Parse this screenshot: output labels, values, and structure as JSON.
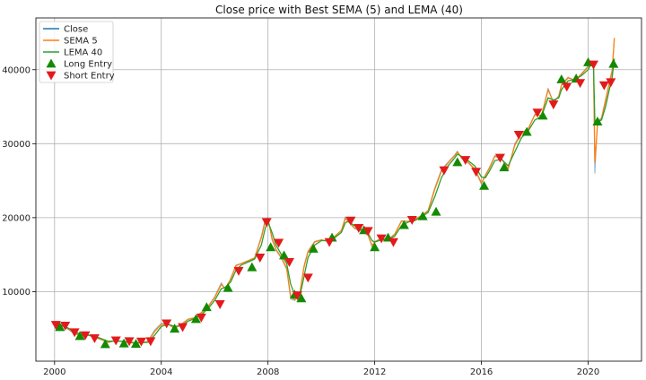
{
  "chart_data": {
    "type": "line",
    "title": "Close price with Best SEMA (5) and LEMA (40)",
    "xlabel": "",
    "ylabel": "",
    "xlim": [
      1999.3,
      2022.0
    ],
    "ylim": [
      600,
      47000
    ],
    "grid": true,
    "legend_position": "top-left",
    "x_ticks": [
      2000,
      2004,
      2008,
      2012,
      2016,
      2020
    ],
    "x_tick_labels": [
      "2000",
      "2004",
      "2008",
      "2012",
      "2016",
      "2020"
    ],
    "y_ticks": [
      10000,
      20000,
      30000,
      40000
    ],
    "y_tick_labels": [
      "10000",
      "20000",
      "30000",
      "40000"
    ],
    "series": [
      {
        "name": "Close",
        "color": "#1f77b4",
        "x": [
          2000.0,
          2000.25,
          2000.5,
          2000.75,
          2001.0,
          2001.25,
          2001.5,
          2001.75,
          2002.0,
          2002.25,
          2002.5,
          2002.75,
          2003.0,
          2003.25,
          2003.5,
          2003.75,
          2004.0,
          2004.25,
          2004.5,
          2004.75,
          2005.0,
          2005.25,
          2005.5,
          2005.75,
          2006.0,
          2006.25,
          2006.4,
          2006.6,
          2006.8,
          2007.0,
          2007.25,
          2007.5,
          2007.75,
          2007.9,
          2008.0,
          2008.15,
          2008.3,
          2008.5,
          2008.7,
          2008.85,
          2009.0,
          2009.1,
          2009.2,
          2009.35,
          2009.5,
          2009.75,
          2010.0,
          2010.25,
          2010.5,
          2010.75,
          2010.9,
          2011.0,
          2011.25,
          2011.5,
          2011.75,
          2011.9,
          2012.0,
          2012.25,
          2012.5,
          2012.75,
          2013.0,
          2013.25,
          2013.5,
          2013.75,
          2014.0,
          2014.25,
          2014.5,
          2014.75,
          2015.0,
          2015.1,
          2015.25,
          2015.5,
          2015.75,
          2016.0,
          2016.15,
          2016.3,
          2016.5,
          2016.75,
          2017.0,
          2017.25,
          2017.5,
          2017.75,
          2018.0,
          2018.25,
          2018.5,
          2018.7,
          2018.9,
          2019.0,
          2019.25,
          2019.5,
          2019.75,
          2020.0,
          2020.1,
          2020.2,
          2020.25,
          2020.35,
          2020.5,
          2020.65,
          2020.8,
          2020.9,
          2020.98
        ],
        "values": [
          5400,
          5600,
          4900,
          4300,
          4000,
          4200,
          3800,
          3500,
          3100,
          3400,
          3300,
          3100,
          3050,
          3100,
          3300,
          4800,
          5700,
          5600,
          5000,
          5600,
          6300,
          6500,
          7200,
          8000,
          9300,
          11200,
          10300,
          11800,
          13600,
          13800,
          14200,
          14600,
          17500,
          19800,
          20000,
          17000,
          15600,
          14500,
          13000,
          9000,
          8800,
          9200,
          10000,
          13500,
          15500,
          16800,
          17000,
          16800,
          17500,
          18300,
          20100,
          19500,
          18500,
          18200,
          17600,
          16000,
          16800,
          17200,
          17000,
          17800,
          19600,
          19500,
          19800,
          20300,
          21000,
          24000,
          26500,
          27500,
          28500,
          29000,
          28000,
          27400,
          26500,
          24500,
          25800,
          26800,
          28400,
          28000,
          26500,
          30000,
          31500,
          32000,
          34000,
          33800,
          37500,
          35500,
          36500,
          38000,
          39000,
          38500,
          39500,
          40500,
          41200,
          40800,
          26000,
          33000,
          33500,
          36000,
          38500,
          40000,
          44000
        ]
      },
      {
        "name": "SEMA 5",
        "color": "#ff7f0e",
        "x": [
          2000.0,
          2000.25,
          2000.5,
          2000.75,
          2001.0,
          2001.25,
          2001.5,
          2001.75,
          2002.0,
          2002.25,
          2002.5,
          2002.75,
          2003.0,
          2003.25,
          2003.5,
          2003.75,
          2004.0,
          2004.25,
          2004.5,
          2004.75,
          2005.0,
          2005.25,
          2005.5,
          2005.75,
          2006.0,
          2006.25,
          2006.4,
          2006.6,
          2006.8,
          2007.0,
          2007.25,
          2007.5,
          2007.75,
          2007.9,
          2008.0,
          2008.15,
          2008.3,
          2008.5,
          2008.7,
          2008.85,
          2009.0,
          2009.1,
          2009.2,
          2009.35,
          2009.5,
          2009.75,
          2010.0,
          2010.25,
          2010.5,
          2010.75,
          2010.9,
          2011.0,
          2011.25,
          2011.5,
          2011.75,
          2011.9,
          2012.0,
          2012.25,
          2012.5,
          2012.75,
          2013.0,
          2013.25,
          2013.5,
          2013.75,
          2014.0,
          2014.25,
          2014.5,
          2014.75,
          2015.0,
          2015.1,
          2015.25,
          2015.5,
          2015.75,
          2016.0,
          2016.15,
          2016.3,
          2016.5,
          2016.75,
          2017.0,
          2017.25,
          2017.5,
          2017.75,
          2018.0,
          2018.25,
          2018.5,
          2018.7,
          2018.9,
          2019.0,
          2019.25,
          2019.5,
          2019.75,
          2020.0,
          2020.1,
          2020.2,
          2020.25,
          2020.35,
          2020.5,
          2020.65,
          2020.8,
          2020.9,
          2020.98
        ],
        "values": [
          5300,
          5500,
          5000,
          4400,
          4050,
          4150,
          3850,
          3550,
          3150,
          3350,
          3300,
          3150,
          3050,
          3100,
          3250,
          4600,
          5600,
          5600,
          5050,
          5550,
          6250,
          6450,
          7150,
          7950,
          9200,
          11000,
          10400,
          11700,
          13500,
          13800,
          14150,
          14550,
          17300,
          19600,
          19900,
          17200,
          15700,
          14600,
          13200,
          9300,
          8900,
          9200,
          9900,
          13300,
          15400,
          16700,
          17000,
          16800,
          17450,
          18250,
          19900,
          19500,
          18600,
          18250,
          17650,
          16200,
          16750,
          17150,
          17000,
          17750,
          19500,
          19500,
          19750,
          20250,
          20900,
          23800,
          26300,
          27400,
          28400,
          28900,
          28100,
          27450,
          26600,
          24700,
          25700,
          26700,
          28300,
          28000,
          26600,
          29800,
          31400,
          31950,
          33900,
          33800,
          37300,
          35600,
          36400,
          37900,
          38900,
          38600,
          39400,
          40400,
          41000,
          40500,
          27500,
          32500,
          33400,
          35800,
          38300,
          39800,
          44300
        ]
      },
      {
        "name": "LEMA 40",
        "color": "#2ca02c",
        "x": [
          2000.0,
          2000.25,
          2000.5,
          2000.75,
          2001.0,
          2001.25,
          2001.5,
          2001.75,
          2002.0,
          2002.25,
          2002.5,
          2002.75,
          2003.0,
          2003.25,
          2003.5,
          2003.75,
          2004.0,
          2004.25,
          2004.5,
          2004.75,
          2005.0,
          2005.25,
          2005.5,
          2005.75,
          2006.0,
          2006.25,
          2006.4,
          2006.6,
          2006.8,
          2007.0,
          2007.25,
          2007.5,
          2007.75,
          2007.9,
          2008.0,
          2008.15,
          2008.3,
          2008.5,
          2008.7,
          2008.85,
          2009.0,
          2009.1,
          2009.2,
          2009.35,
          2009.5,
          2009.75,
          2010.0,
          2010.25,
          2010.5,
          2010.75,
          2010.9,
          2011.0,
          2011.25,
          2011.5,
          2011.75,
          2011.9,
          2012.0,
          2012.25,
          2012.5,
          2012.75,
          2013.0,
          2013.25,
          2013.5,
          2013.75,
          2014.0,
          2014.25,
          2014.5,
          2014.75,
          2015.0,
          2015.1,
          2015.25,
          2015.5,
          2015.75,
          2016.0,
          2016.15,
          2016.3,
          2016.5,
          2016.75,
          2017.0,
          2017.25,
          2017.5,
          2017.75,
          2018.0,
          2018.25,
          2018.5,
          2018.7,
          2018.9,
          2019.0,
          2019.25,
          2019.5,
          2019.75,
          2020.0,
          2020.1,
          2020.2,
          2020.25,
          2020.35,
          2020.5,
          2020.65,
          2020.8,
          2020.9,
          2020.98
        ],
        "values": [
          5200,
          5400,
          5100,
          4600,
          4200,
          4100,
          3950,
          3650,
          3300,
          3300,
          3300,
          3200,
          3100,
          3100,
          3150,
          4100,
          5300,
          5600,
          5300,
          5400,
          6000,
          6350,
          6900,
          7700,
          8800,
          10400,
          10600,
          11300,
          12900,
          13600,
          14000,
          14400,
          16300,
          18600,
          19400,
          18000,
          16300,
          15000,
          13800,
          11000,
          9600,
          9300,
          9500,
          12000,
          14600,
          16300,
          16900,
          16900,
          17300,
          18000,
          19300,
          19500,
          18900,
          18400,
          17900,
          16900,
          16700,
          17000,
          17000,
          17500,
          18900,
          19400,
          19600,
          20100,
          20700,
          22800,
          25400,
          27000,
          28100,
          28600,
          28300,
          27700,
          27000,
          25500,
          25400,
          26300,
          27700,
          27900,
          27000,
          28900,
          30800,
          31700,
          33200,
          33700,
          36200,
          35900,
          36200,
          37300,
          38500,
          38700,
          39200,
          40000,
          40700,
          40600,
          33000,
          33000,
          33200,
          35000,
          37400,
          39000,
          41500
        ]
      }
    ],
    "entries": [
      {
        "name": "Long Entry",
        "color": "#138a00",
        "x": [
          2000.2,
          2000.95,
          2001.9,
          2002.6,
          2003.05,
          2004.5,
          2005.3,
          2005.7,
          2006.5,
          2007.4,
          2008.1,
          2008.6,
          2009.0,
          2009.25,
          2009.7,
          2010.4,
          2011.6,
          2012.0,
          2012.5,
          2013.1,
          2013.8,
          2014.3,
          2015.1,
          2016.1,
          2016.85,
          2017.7,
          2018.3,
          2019.0,
          2019.55,
          2020.0,
          2020.35,
          2020.95
        ],
        "values": [
          5200,
          4000,
          2900,
          3000,
          2950,
          5000,
          6300,
          7900,
          10500,
          13300,
          16000,
          14900,
          9600,
          9100,
          15800,
          17300,
          18300,
          16000,
          17300,
          19000,
          20200,
          20800,
          27500,
          24300,
          26800,
          31600,
          33800,
          38700,
          38800,
          41000,
          33000,
          40800
        ]
      },
      {
        "name": "Short Entry",
        "color": "#e31a1c",
        "x": [
          2000.05,
          2000.4,
          2000.75,
          2001.15,
          2001.5,
          2002.3,
          2002.8,
          2003.25,
          2003.6,
          2004.2,
          2004.8,
          2005.5,
          2006.2,
          2006.9,
          2007.7,
          2007.95,
          2008.4,
          2008.8,
          2009.1,
          2009.5,
          2010.3,
          2011.1,
          2011.4,
          2011.75,
          2012.25,
          2012.7,
          2013.4,
          2014.6,
          2015.4,
          2015.8,
          2016.7,
          2017.4,
          2018.1,
          2018.7,
          2019.2,
          2019.7,
          2020.2,
          2020.6,
          2020.85
        ],
        "values": [
          5500,
          5400,
          4500,
          4100,
          3700,
          3400,
          3300,
          3250,
          3300,
          5700,
          5200,
          6500,
          8300,
          12800,
          14600,
          19400,
          16600,
          14000,
          9500,
          11900,
          16700,
          19600,
          18600,
          18200,
          17200,
          16700,
          19700,
          26400,
          27800,
          26200,
          28100,
          31200,
          34200,
          35300,
          37700,
          38200,
          40700,
          37900,
          38300
        ]
      }
    ]
  }
}
